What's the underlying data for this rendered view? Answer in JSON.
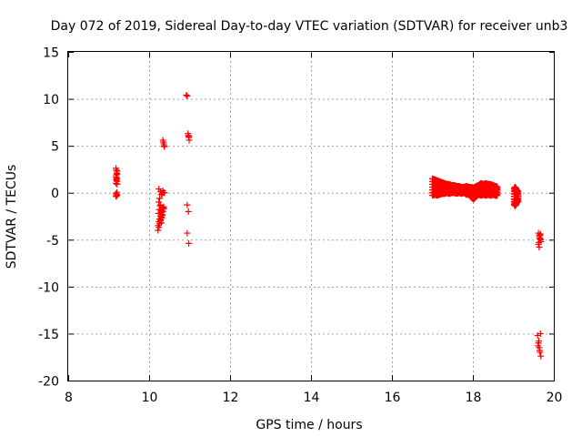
{
  "chart_data": {
    "type": "scatter",
    "title": "Day 072 of 2019, Sidereal Day-to-day VTEC variation (SDTVAR) for receiver unb3",
    "xlabel": "GPS time / hours",
    "ylabel": "SDTVAR / TECUs",
    "xlim": [
      8,
      20
    ],
    "ylim": [
      -20,
      15
    ],
    "xticks": [
      "8",
      "10",
      "12",
      "14",
      "16",
      "18",
      "20"
    ],
    "yticks": [
      "15",
      "10",
      "5",
      "0",
      "-5",
      "-10",
      "-15",
      "-20"
    ],
    "grid": true,
    "marker": "plus",
    "color": "#ff0000",
    "series": [
      {
        "x": [
          9.18,
          9.19,
          9.2,
          9.21,
          9.18,
          9.2,
          9.19,
          9.21,
          9.18,
          9.2,
          9.19,
          9.21,
          9.18,
          9.2,
          9.19,
          9.21,
          9.18,
          9.2,
          9.19,
          9.21,
          10.22,
          10.24,
          10.26,
          10.28,
          10.3,
          10.32,
          10.34,
          10.36,
          10.22,
          10.24,
          10.26,
          10.28,
          10.3,
          10.32,
          10.34,
          10.36,
          10.23,
          10.25,
          10.27,
          10.29,
          10.31,
          10.33,
          10.35,
          10.24,
          10.26,
          10.28,
          10.3,
          10.32,
          10.24,
          10.28,
          10.32,
          10.36,
          10.3,
          10.34,
          10.38,
          10.34,
          10.36,
          10.38,
          10.35,
          10.37,
          10.92,
          10.94,
          10.96,
          10.97,
          10.98,
          10.99,
          10.98,
          10.94,
          10.97,
          10.94,
          10.98,
          19.62,
          19.64,
          19.66,
          19.68,
          19.62,
          19.64,
          19.66,
          19.68,
          19.63,
          19.65,
          19.67,
          19.6,
          19.62,
          19.64,
          19.66,
          19.68,
          19.61,
          19.63,
          19.65,
          19.67
        ],
        "y": [
          2.6,
          2.4,
          2.1,
          2.3,
          1.7,
          1.5,
          1.4,
          1.2,
          1.0,
          1.6,
          1.9,
          0.9,
          -0.1,
          -0.3,
          -0.4,
          -0.2,
          -0.35,
          0.05,
          1.3,
          2.0,
          -4.0,
          -3.7,
          -3.3,
          -3.0,
          -2.7,
          -2.3,
          -2.0,
          -1.7,
          -3.5,
          -3.1,
          -2.8,
          -2.5,
          -2.1,
          -1.9,
          -1.6,
          -1.5,
          -2.2,
          -1.8,
          -1.4,
          -2.9,
          -2.6,
          -2.4,
          -1.6,
          -1.0,
          -0.6,
          -1.3,
          -3.2,
          -2.0,
          0.4,
          0.1,
          -0.1,
          0.0,
          -0.2,
          0.2,
          0.0,
          5.6,
          5.2,
          4.9,
          5.4,
          5.0,
          10.4,
          10.3,
          6.3,
          6.1,
          5.9,
          5.6,
          6.0,
          -1.3,
          -2.0,
          -4.3,
          -5.4,
          -4.3,
          -4.6,
          -4.9,
          -5.2,
          -5.5,
          -5.8,
          -4.5,
          -5.0,
          -5.3,
          -4.8,
          -4.4,
          -15.2,
          -16.0,
          -16.5,
          -17.0,
          -17.4,
          -16.3,
          -15.8,
          -16.8,
          -15.0
        ]
      }
    ],
    "bands": [
      {
        "x": [
          17.0,
          17.06,
          17.12,
          17.18,
          17.24,
          17.3,
          17.36,
          17.42,
          17.48,
          17.54,
          17.6,
          17.66,
          17.72,
          17.78,
          17.84,
          17.9,
          17.96,
          18.02,
          18.08,
          18.14,
          18.2,
          18.26,
          18.32,
          18.38,
          18.44,
          18.5,
          18.56,
          18.62
        ],
        "y_low": [
          -0.3,
          -0.2,
          -0.3,
          -0.2,
          -0.1,
          -0.1,
          0.0,
          -0.1,
          0.0,
          0.0,
          -0.1,
          0.0,
          -0.1,
          0.0,
          -0.2,
          -0.1,
          -0.5,
          -0.7,
          -0.4,
          -0.2,
          -0.3,
          -0.2,
          -0.3,
          -0.2,
          -0.3,
          -0.2,
          -0.3,
          -0.3
        ],
        "y_high": [
          1.5,
          1.4,
          1.3,
          1.2,
          1.1,
          1.0,
          0.9,
          0.9,
          0.8,
          0.8,
          0.7,
          0.7,
          0.6,
          0.6,
          0.7,
          0.6,
          0.6,
          0.5,
          0.7,
          0.8,
          1.0,
          0.9,
          1.0,
          0.9,
          0.9,
          0.8,
          0.7,
          0.6
        ]
      },
      {
        "x": [
          19.02,
          19.04,
          19.06,
          19.08,
          19.1,
          19.12
        ],
        "y_low": [
          -1.2,
          -1.4,
          -1.3,
          -1.1,
          -1.0,
          -0.9
        ],
        "y_high": [
          0.4,
          0.6,
          0.5,
          0.3,
          0.2,
          0.1
        ]
      }
    ]
  }
}
